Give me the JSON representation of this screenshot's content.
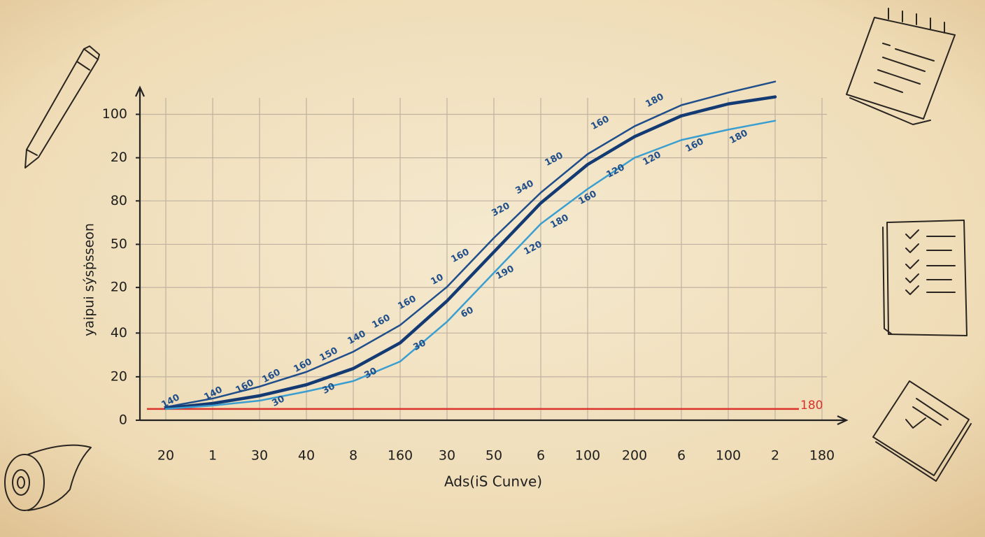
{
  "chart_data": {
    "type": "line",
    "x_label": "Ads(iS Cunve)",
    "y_label": "yaipui sýsṗsseon",
    "categories": [
      "20",
      "1",
      "30",
      "40",
      "8",
      "160",
      "30",
      "50",
      "6",
      "100",
      "200",
      "6",
      "100",
      "2",
      "180"
    ],
    "ylim": [
      0,
      112
    ],
    "yticks": [
      {
        "value": 0,
        "label": "0"
      },
      {
        "value": 14.2,
        "label": "20"
      },
      {
        "value": 28.5,
        "label": "40"
      },
      {
        "value": 43.4,
        "label": "20"
      },
      {
        "value": 57.5,
        "label": "50"
      },
      {
        "value": 71.7,
        "label": "80"
      },
      {
        "value": 85.8,
        "label": "20"
      },
      100
    ],
    "grid": true,
    "series": [
      {
        "color": "#1f4e8a",
        "values": [
          4.3,
          7.1,
          11.0,
          15.8,
          22.4,
          31.1,
          43.6,
          59.6,
          74.4,
          87.0,
          96.1,
          103.0,
          107.1,
          110.7,
          null
        ]
      },
      {
        "color": "#143a73",
        "values": [
          3.9,
          5.5,
          8.0,
          11.6,
          16.9,
          25.3,
          39.0,
          55.0,
          71.0,
          83.6,
          92.7,
          99.5,
          103.4,
          105.7,
          null
        ]
      },
      {
        "color": "#3a9fd0",
        "values": [
          3.7,
          4.8,
          6.4,
          9.4,
          12.8,
          19.2,
          32.2,
          48.2,
          64.2,
          75.6,
          85.8,
          91.6,
          95.0,
          97.9,
          null
        ]
      }
    ],
    "reference_line": {
      "value": 3.7,
      "label": "180",
      "color": "#d9332b"
    },
    "annotations": [
      "140",
      "140",
      "160",
      "160",
      "160",
      "150",
      "140",
      "160",
      "160",
      "10",
      "160",
      "320",
      "340",
      "180",
      "160",
      "180",
      "30",
      "30",
      "30",
      "30",
      "60",
      "190",
      "120",
      "180",
      "160",
      "120",
      "120",
      "160",
      "180"
    ]
  }
}
